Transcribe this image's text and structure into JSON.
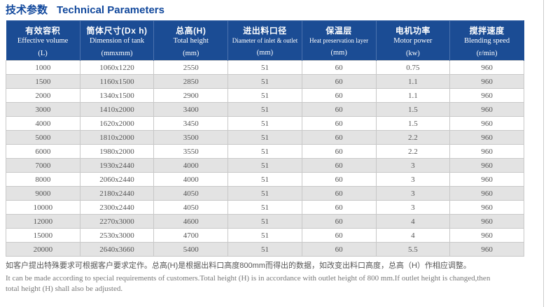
{
  "page_title": {
    "zh": "技术参数",
    "en": "Technical Parameters"
  },
  "table": {
    "columns": [
      {
        "zh": "有效容积",
        "en": "Effective volume",
        "unit": "(L)"
      },
      {
        "zh": "筒体尺寸(Dx h)",
        "en": "Dimension of tank",
        "unit": "(mmxmm)"
      },
      {
        "zh": "总高(H)",
        "en": "Total height",
        "unit": "(mm)"
      },
      {
        "zh": "进出料口径",
        "en": "Diameter of inlet & outlet",
        "unit": "(mm)"
      },
      {
        "zh": "保温层",
        "en": "Heat preservation layer",
        "unit": "(mm)"
      },
      {
        "zh": "电机功率",
        "en": "Motor power",
        "unit": "(kw)"
      },
      {
        "zh": "搅拌速度",
        "en": "Blending speed",
        "unit": "(r/min)"
      }
    ],
    "rows": [
      [
        "1000",
        "1060x1220",
        "2550",
        "51",
        "60",
        "0.75",
        "960"
      ],
      [
        "1500",
        "1160x1500",
        "2850",
        "51",
        "60",
        "1.1",
        "960"
      ],
      [
        "2000",
        "1340x1500",
        "2900",
        "51",
        "60",
        "1.1",
        "960"
      ],
      [
        "3000",
        "1410x2000",
        "3400",
        "51",
        "60",
        "1.5",
        "960"
      ],
      [
        "4000",
        "1620x2000",
        "3450",
        "51",
        "60",
        "1.5",
        "960"
      ],
      [
        "5000",
        "1810x2000",
        "3500",
        "51",
        "60",
        "2.2",
        "960"
      ],
      [
        "6000",
        "1980x2000",
        "3550",
        "51",
        "60",
        "2.2",
        "960"
      ],
      [
        "7000",
        "1930x2440",
        "4000",
        "51",
        "60",
        "3",
        "960"
      ],
      [
        "8000",
        "2060x2440",
        "4000",
        "51",
        "60",
        "3",
        "960"
      ],
      [
        "9000",
        "2180x2440",
        "4050",
        "51",
        "60",
        "3",
        "960"
      ],
      [
        "10000",
        "2300x2440",
        "4050",
        "51",
        "60",
        "3",
        "960"
      ],
      [
        "12000",
        "2270x3000",
        "4600",
        "51",
        "60",
        "4",
        "960"
      ],
      [
        "15000",
        "2530x3000",
        "4700",
        "51",
        "60",
        "4",
        "960"
      ],
      [
        "20000",
        "2640x3660",
        "5400",
        "51",
        "60",
        "5.5",
        "960"
      ]
    ]
  },
  "footnote": {
    "zh": "如客户提出特殊要求可根据客户要求定作。总高(H)是根据出料口高度800mm而得出的数据，如改变出料口高度，总高（H）作相应调整。",
    "en_line1": "It can be made according to special requirements of customers.Total height (H) is in accordance with outlet height of 800 mm.If outlet height is changed,then",
    "en_line2": "total height (H) shall also be adjusted."
  },
  "colors": {
    "title_blue": "#11489c",
    "header_bg": "#1b4c94",
    "header_divider": "#4a71ad",
    "row_alt_bg": "#e3e3e3",
    "border_gray": "#c8c8c8",
    "body_text": "#555555"
  }
}
